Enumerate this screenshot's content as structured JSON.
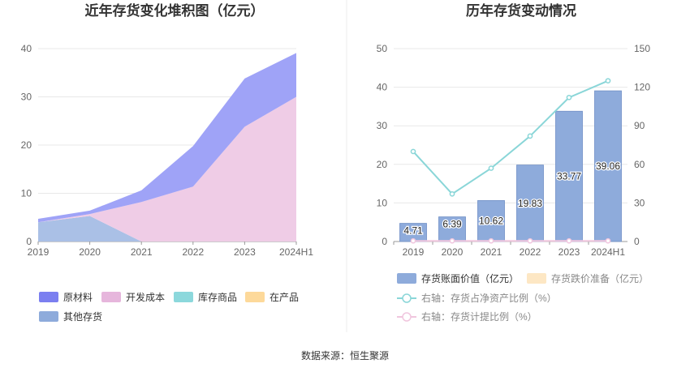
{
  "charts": {
    "left": {
      "title": "近年存货变化堆积图（亿元）",
      "chart_data": {
        "type": "area",
        "stacked": true,
        "categories": [
          "2019",
          "2020",
          "2021",
          "2022",
          "2023",
          "2024H1"
        ],
        "ylim": [
          0,
          40
        ],
        "yticks": [
          0,
          10,
          20,
          30,
          40
        ],
        "series": [
          {
            "name": "其他存货",
            "color": "#aac0e6",
            "values": [
              4.0,
              5.3,
              0.0,
              0.0,
              0.0,
              0.0
            ]
          },
          {
            "name": "在产品",
            "color": "#fdd99a",
            "values": [
              0.0,
              0.0,
              0.0,
              0.0,
              0.0,
              0.0
            ]
          },
          {
            "name": "库存商品",
            "color": "#8cd8dc",
            "values": [
              0.0,
              0.0,
              0.0,
              0.0,
              0.0,
              0.0
            ]
          },
          {
            "name": "开发成本",
            "color": "#efcce6",
            "values": [
              0.0,
              0.4,
              8.2,
              11.4,
              23.8,
              30.0
            ]
          },
          {
            "name": "原材料",
            "color": "#9fa3f7",
            "values": [
              0.7,
              0.7,
              2.4,
              8.4,
              10.0,
              9.1
            ]
          }
        ]
      },
      "legend": [
        {
          "name": "原材料",
          "color": "#7b7ff0"
        },
        {
          "name": "开发成本",
          "color": "#e6b6dc"
        },
        {
          "name": "库存商品",
          "color": "#8cd8dc"
        },
        {
          "name": "在产品",
          "color": "#fdd99a"
        },
        {
          "name": "其他存货",
          "color": "#8eabdb"
        }
      ]
    },
    "right": {
      "title": "历年存货变动情况",
      "chart_data": {
        "type": "bar",
        "categories": [
          "2019",
          "2020",
          "2021",
          "2022",
          "2023",
          "2024H1"
        ],
        "ylim_left": [
          0,
          50
        ],
        "yticks_left": [
          0,
          10,
          20,
          30,
          40,
          50
        ],
        "ylim_right": [
          0,
          150
        ],
        "yticks_right": [
          0,
          30,
          60,
          90,
          120,
          150
        ],
        "series": [
          {
            "name": "存货账面价值（亿元）",
            "kind": "bar",
            "axis": "left",
            "color": "#8eabdb",
            "values": [
              4.71,
              6.39,
              10.62,
              19.83,
              33.77,
              39.06
            ],
            "labels": [
              "4.71",
              "6.39",
              "10.62",
              "19.83",
              "33.77",
              "39.06"
            ]
          },
          {
            "name": "存货跌价准备（亿元）",
            "kind": "bar",
            "axis": "left",
            "color": "#fde7c4",
            "values": [
              0,
              0,
              0,
              0,
              0,
              0
            ]
          },
          {
            "name": "右轴：存货占净资产比例（%）",
            "kind": "line",
            "axis": "right",
            "color": "#8ad6d8",
            "values": [
              70,
              37,
              57,
              82,
              112,
              125
            ]
          },
          {
            "name": "右轴：存货计提比例（%）",
            "kind": "line",
            "axis": "right",
            "color": "#f0c6de",
            "values": [
              0.5,
              0.5,
              0.5,
              0.5,
              0.5,
              0.5
            ]
          }
        ]
      }
    }
  },
  "source_text": "数据来源：恒生聚源"
}
